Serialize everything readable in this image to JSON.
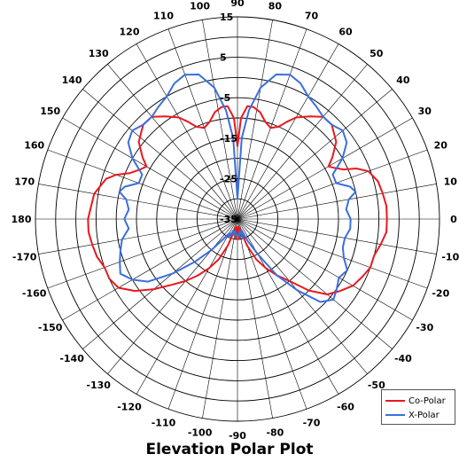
{
  "chart_data": {
    "type": "polar-line",
    "title": "Elevation Polar Plot",
    "angle_ticks": [
      0,
      10,
      20,
      30,
      40,
      50,
      60,
      70,
      80,
      90,
      100,
      110,
      120,
      130,
      140,
      150,
      160,
      170,
      180,
      -170,
      -160,
      -150,
      -140,
      -130,
      -120,
      -110,
      -100,
      -90,
      -80,
      -70,
      -60,
      -50,
      -40,
      -30,
      -20,
      -10
    ],
    "radial_ticks": [
      -35,
      -25,
      -15,
      -5,
      5,
      15
    ],
    "r_range": [
      -35,
      15
    ],
    "grid": true,
    "legend_position": "bottom-right",
    "series": [
      {
        "name": "Co-Polar",
        "color": "#e8181f",
        "points": [
          [
            0,
            2
          ],
          [
            5,
            2
          ],
          [
            10,
            1.5
          ],
          [
            15,
            1
          ],
          [
            20,
            -0.5
          ],
          [
            23,
            -3
          ],
          [
            25,
            -6
          ],
          [
            28,
            -8
          ],
          [
            30,
            -9
          ],
          [
            33,
            -7
          ],
          [
            38,
            -4
          ],
          [
            45,
            -2
          ],
          [
            50,
            -2
          ],
          [
            55,
            -4
          ],
          [
            60,
            -6
          ],
          [
            63,
            -8
          ],
          [
            66,
            -10
          ],
          [
            70,
            -11
          ],
          [
            74,
            -10
          ],
          [
            78,
            -8
          ],
          [
            82,
            -7
          ],
          [
            85,
            -7
          ],
          [
            88,
            -10
          ],
          [
            90,
            -17
          ],
          [
            92,
            -10
          ],
          [
            95,
            -7
          ],
          [
            98,
            -7
          ],
          [
            102,
            -8
          ],
          [
            106,
            -10
          ],
          [
            110,
            -11
          ],
          [
            114,
            -10
          ],
          [
            117,
            -8
          ],
          [
            120,
            -6
          ],
          [
            125,
            -4
          ],
          [
            130,
            -2
          ],
          [
            135,
            -2
          ],
          [
            142,
            -4
          ],
          [
            147,
            -7
          ],
          [
            150,
            -9
          ],
          [
            153,
            -8
          ],
          [
            157,
            -6
          ],
          [
            160,
            -3
          ],
          [
            163,
            -1
          ],
          [
            170,
            1
          ],
          [
            180,
            2
          ],
          [
            -175,
            2
          ],
          [
            -170,
            1.5
          ],
          [
            -165,
            1
          ],
          [
            -160,
            0
          ],
          [
            -155,
            0
          ],
          [
            -150,
            -1
          ],
          [
            -145,
            -4
          ],
          [
            -140,
            -8
          ],
          [
            -135,
            -12
          ],
          [
            -130,
            -15
          ],
          [
            -125,
            -18
          ],
          [
            -120,
            -21
          ],
          [
            -115,
            -24
          ],
          [
            -110,
            -28
          ],
          [
            -105,
            -32
          ],
          [
            -100,
            -33
          ],
          [
            -95,
            -30
          ],
          [
            -92,
            -33
          ],
          [
            -90,
            -32
          ],
          [
            -88,
            -33
          ],
          [
            -85,
            -30
          ],
          [
            -80,
            -33
          ],
          [
            -75,
            -32
          ],
          [
            -70,
            -28
          ],
          [
            -65,
            -24
          ],
          [
            -60,
            -21
          ],
          [
            -55,
            -18
          ],
          [
            -50,
            -15
          ],
          [
            -45,
            -10
          ],
          [
            -40,
            -6
          ],
          [
            -35,
            -4
          ],
          [
            -30,
            -2
          ],
          [
            -25,
            -1
          ],
          [
            -20,
            0
          ],
          [
            -15,
            0
          ],
          [
            -10,
            1
          ],
          [
            -5,
            2
          ],
          [
            0,
            2
          ]
        ]
      },
      {
        "name": "X-Polar",
        "color": "#3a6fdc",
        "points": [
          [
            0,
            -7
          ],
          [
            5,
            -8
          ],
          [
            10,
            -7
          ],
          [
            13,
            -5
          ],
          [
            16,
            -6
          ],
          [
            20,
            -9
          ],
          [
            25,
            -9
          ],
          [
            30,
            -5
          ],
          [
            35,
            -2
          ],
          [
            40,
            -1
          ],
          [
            45,
            -2
          ],
          [
            50,
            -2
          ],
          [
            55,
            -1
          ],
          [
            60,
            0
          ],
          [
            65,
            2
          ],
          [
            70,
            3
          ],
          [
            75,
            2
          ],
          [
            80,
            -2
          ],
          [
            84,
            -8
          ],
          [
            87,
            -15
          ],
          [
            90,
            -30
          ],
          [
            93,
            -15
          ],
          [
            96,
            -8
          ],
          [
            100,
            -2
          ],
          [
            105,
            2
          ],
          [
            110,
            3
          ],
          [
            115,
            2
          ],
          [
            120,
            0
          ],
          [
            125,
            -1
          ],
          [
            130,
            -2
          ],
          [
            135,
            -2
          ],
          [
            140,
            -1
          ],
          [
            145,
            -2
          ],
          [
            150,
            -5
          ],
          [
            155,
            -9
          ],
          [
            160,
            -9
          ],
          [
            164,
            -6
          ],
          [
            167,
            -5
          ],
          [
            170,
            -7
          ],
          [
            175,
            -8
          ],
          [
            180,
            -7
          ],
          [
            -175,
            -8
          ],
          [
            -170,
            -6
          ],
          [
            -165,
            -5
          ],
          [
            -160,
            -4
          ],
          [
            -155,
            -3
          ],
          [
            -150,
            -5
          ],
          [
            -145,
            -8
          ],
          [
            -140,
            -14
          ],
          [
            -135,
            -20
          ],
          [
            -130,
            -25
          ],
          [
            -125,
            -29
          ],
          [
            -120,
            -31
          ],
          [
            -115,
            -30
          ],
          [
            -110,
            -32
          ],
          [
            -105,
            -31
          ],
          [
            -100,
            -32
          ],
          [
            -95,
            -31
          ],
          [
            -90,
            -31
          ],
          [
            -85,
            -31
          ],
          [
            -80,
            -32
          ],
          [
            -75,
            -30
          ],
          [
            -70,
            -32
          ],
          [
            -65,
            -29
          ],
          [
            -60,
            -25
          ],
          [
            -55,
            -18
          ],
          [
            -50,
            -12
          ],
          [
            -45,
            -6
          ],
          [
            -40,
            -4
          ],
          [
            -35,
            -5
          ],
          [
            -30,
            -6
          ],
          [
            -25,
            -5
          ],
          [
            -20,
            -7
          ],
          [
            -15,
            -8
          ],
          [
            -10,
            -8
          ],
          [
            -5,
            -7
          ],
          [
            0,
            -7
          ]
        ]
      }
    ]
  }
}
